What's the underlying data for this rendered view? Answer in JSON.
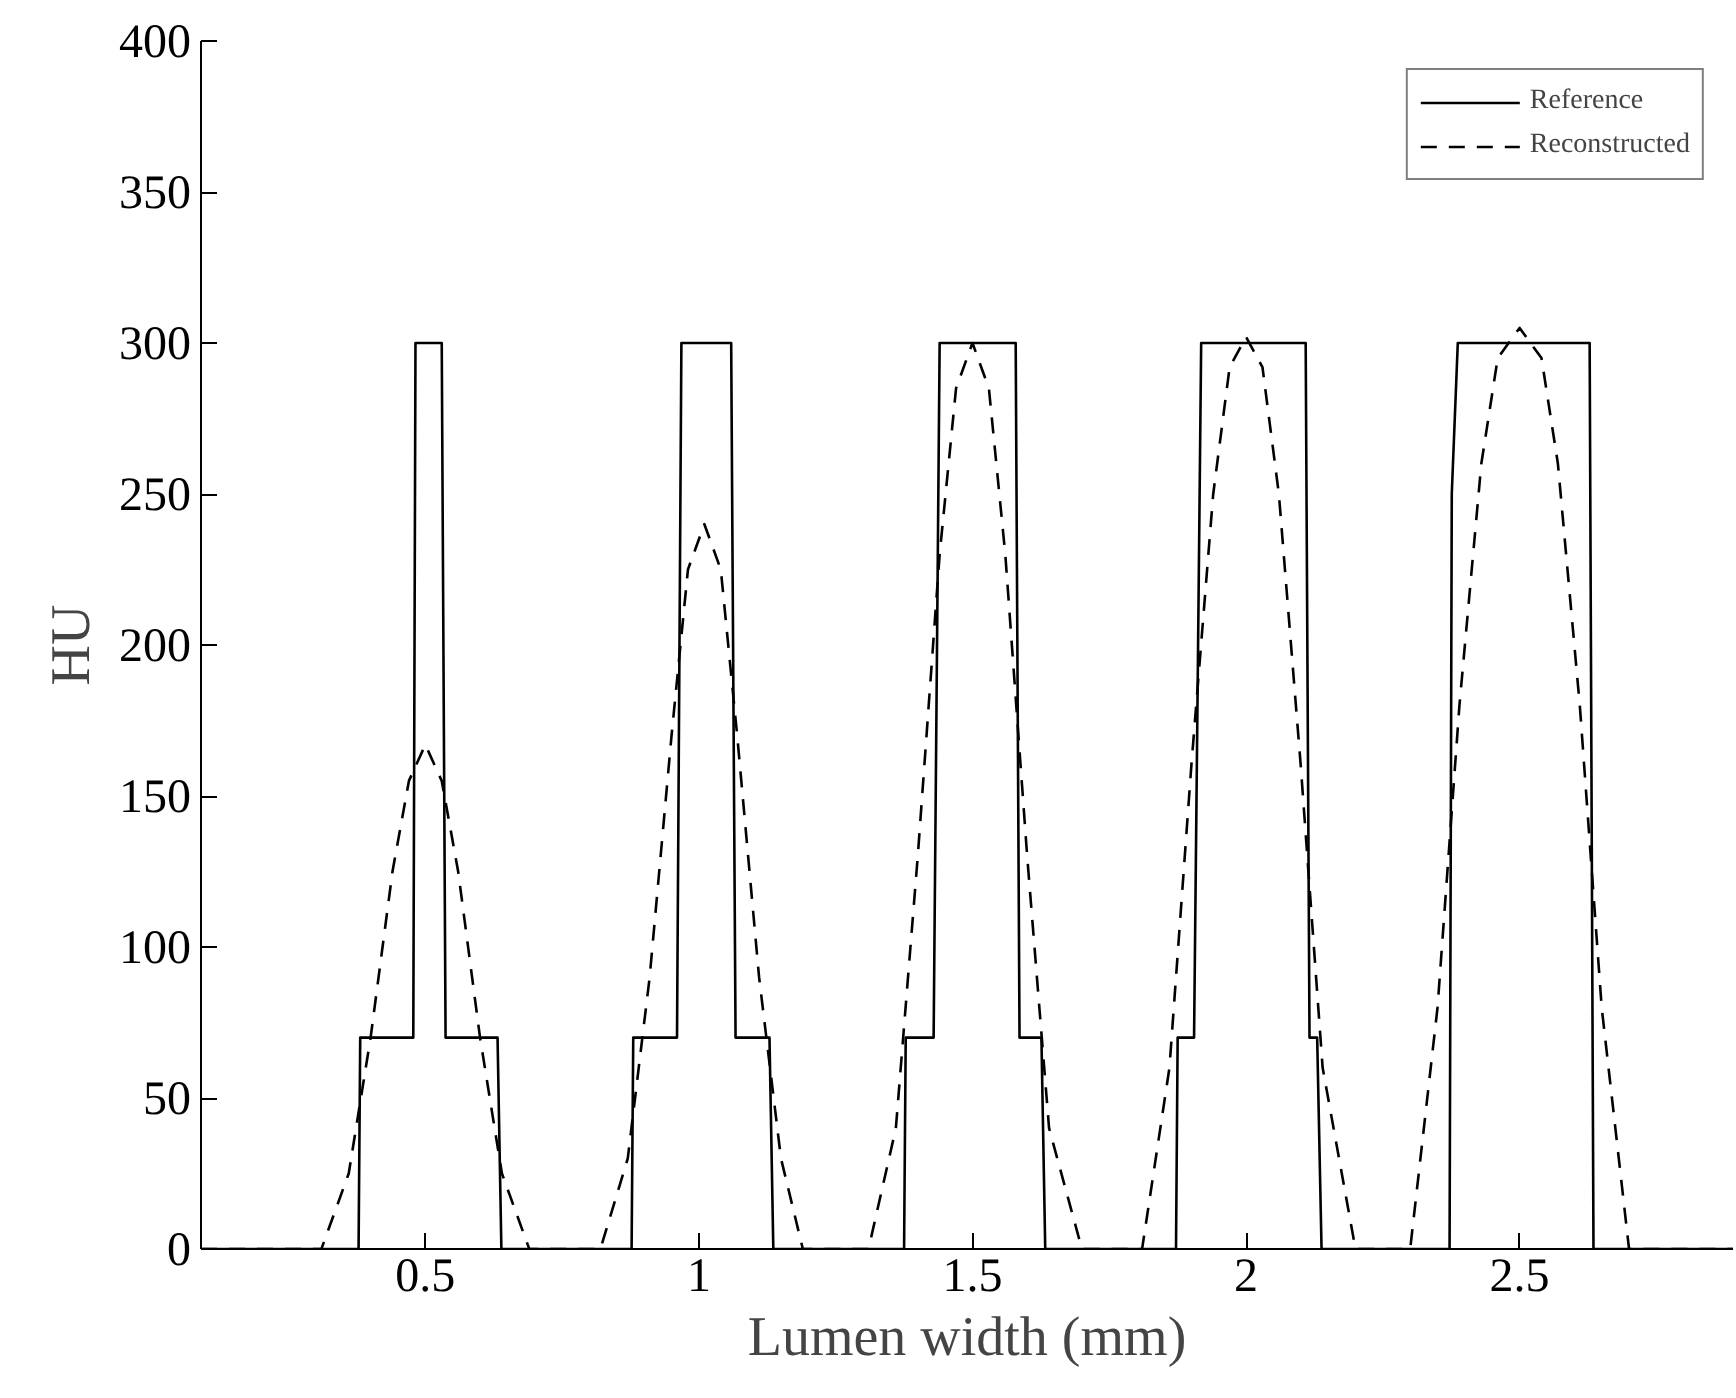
{
  "chart_data": {
    "type": "line",
    "xlabel": "Lumen width (mm)",
    "ylabel": "HU",
    "xlim": [
      0.09,
      2.89
    ],
    "ylim": [
      0,
      400
    ],
    "xticks": [
      {
        "value": 0.5,
        "label": "0.5"
      },
      1,
      1.5,
      2,
      2.5
    ],
    "yticks": [
      0,
      50,
      100,
      150,
      200,
      250,
      300,
      350,
      400
    ],
    "grid": false,
    "legend": "top right",
    "series": [
      {
        "name": "Reference",
        "color": "#000000",
        "line_style": "solid",
        "x": [
          0.09,
          0.378,
          0.381,
          0.478,
          0.482,
          0.53,
          0.537,
          0.632,
          0.639,
          0.877,
          0.88,
          0.96,
          0.968,
          1.059,
          1.067,
          1.129,
          1.136,
          1.375,
          1.378,
          1.429,
          1.44,
          1.579,
          1.586,
          1.626,
          1.633,
          1.872,
          1.875,
          1.905,
          1.918,
          2.109,
          2.116,
          2.13,
          2.138,
          2.372,
          2.376,
          2.387,
          2.628,
          2.635,
          2.89
        ],
        "values": [
          0,
          0,
          70,
          70,
          300,
          300,
          70,
          70,
          0,
          0,
          70,
          70,
          300,
          300,
          70,
          70,
          0,
          0,
          70,
          70,
          300,
          300,
          70,
          70,
          0,
          0,
          70,
          70,
          300,
          300,
          70,
          70,
          0,
          0,
          250,
          300,
          300,
          0,
          0
        ]
      },
      {
        "name": "Reconstructed",
        "color": "#000000",
        "line_style": "dashed",
        "x": [
          0.09,
          0.31,
          0.36,
          0.4,
          0.44,
          0.47,
          0.5,
          0.53,
          0.56,
          0.6,
          0.64,
          0.69,
          0.82,
          0.87,
          0.91,
          0.95,
          0.98,
          1.01,
          1.04,
          1.07,
          1.11,
          1.15,
          1.19,
          1.31,
          1.36,
          1.4,
          1.44,
          1.47,
          1.5,
          1.53,
          1.56,
          1.6,
          1.64,
          1.7,
          1.81,
          1.86,
          1.9,
          1.94,
          1.97,
          2.0,
          2.03,
          2.06,
          2.1,
          2.14,
          2.2,
          2.3,
          2.35,
          2.39,
          2.43,
          2.46,
          2.5,
          2.54,
          2.57,
          2.61,
          2.65,
          2.7,
          2.89
        ],
        "values": [
          0,
          0,
          25,
          70,
          125,
          155,
          167,
          155,
          125,
          70,
          25,
          0,
          0,
          30,
          90,
          170,
          225,
          240,
          225,
          170,
          90,
          30,
          0,
          0,
          40,
          130,
          230,
          285,
          300,
          285,
          230,
          130,
          40,
          0,
          0,
          60,
          160,
          250,
          292,
          302,
          292,
          250,
          160,
          60,
          0,
          0,
          80,
          180,
          260,
          295,
          305,
          295,
          260,
          180,
          80,
          0,
          0
        ]
      }
    ]
  }
}
